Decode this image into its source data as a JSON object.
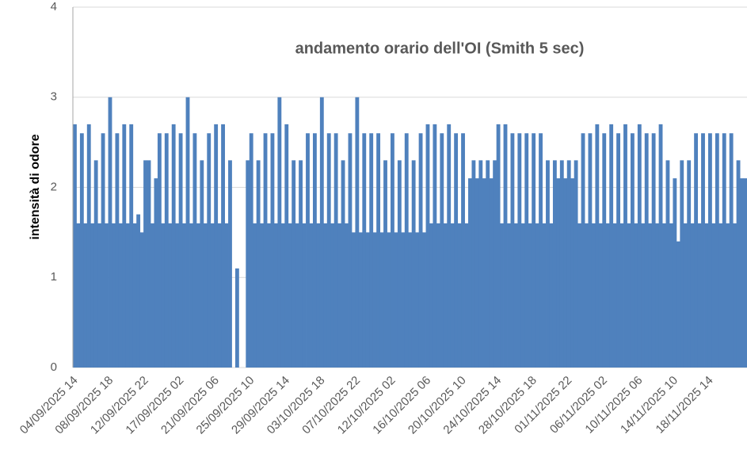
{
  "chart_data": {
    "type": "bar",
    "title": "andamento orario dell'OI (Smith 5 sec)",
    "y_label": "intensità di odore",
    "color": "#4f81bd",
    "grid": true,
    "ylim": [
      0,
      4
    ],
    "yticks": [
      0,
      1,
      2,
      3,
      4
    ],
    "categories": [
      "04/09/2025 14",
      null,
      null,
      null,
      null,
      null,
      null,
      null,
      null,
      null,
      "08/09/2025 18",
      null,
      null,
      null,
      null,
      null,
      null,
      null,
      null,
      null,
      "12/09/2025 22",
      null,
      null,
      null,
      null,
      null,
      null,
      null,
      null,
      null,
      "17/09/2025 02",
      null,
      null,
      null,
      null,
      null,
      null,
      null,
      null,
      null,
      "21/09/2025 06",
      null,
      null,
      null,
      null,
      null,
      null,
      null,
      null,
      null,
      "25/09/2025 10",
      null,
      null,
      null,
      null,
      null,
      null,
      null,
      null,
      null,
      "29/09/2025 14",
      null,
      null,
      null,
      null,
      null,
      null,
      null,
      null,
      null,
      "03/10/2025 18",
      null,
      null,
      null,
      null,
      null,
      null,
      null,
      null,
      null,
      "07/10/2025 22",
      null,
      null,
      null,
      null,
      null,
      null,
      null,
      null,
      null,
      "12/10/2025 02",
      null,
      null,
      null,
      null,
      null,
      null,
      null,
      null,
      null,
      "16/10/2025 06",
      null,
      null,
      null,
      null,
      null,
      null,
      null,
      null,
      null,
      "20/10/2025 10",
      null,
      null,
      null,
      null,
      null,
      null,
      null,
      null,
      null,
      "24/10/2025 14",
      null,
      null,
      null,
      null,
      null,
      null,
      null,
      null,
      null,
      "28/10/2025 18",
      null,
      null,
      null,
      null,
      null,
      null,
      null,
      null,
      null,
      "01/11/2025 22",
      null,
      null,
      null,
      null,
      null,
      null,
      null,
      null,
      null,
      "06/11/2025 02",
      null,
      null,
      null,
      null,
      null,
      null,
      null,
      null,
      null,
      "10/11/2025 06",
      null,
      null,
      null,
      null,
      null,
      null,
      null,
      null,
      null,
      "14/11/2025 10",
      null,
      null,
      null,
      null,
      null,
      null,
      null,
      null,
      null,
      "18/11/2025 14",
      null,
      null,
      null,
      null,
      null,
      null,
      null,
      null,
      null,
      null
    ],
    "values": [
      2.7,
      1.6,
      2.6,
      1.6,
      2.7,
      1.6,
      2.3,
      1.6,
      2.6,
      1.6,
      3.0,
      1.6,
      2.6,
      1.6,
      2.7,
      1.6,
      2.7,
      1.6,
      1.7,
      1.5,
      2.3,
      2.3,
      1.6,
      2.1,
      2.6,
      1.6,
      2.6,
      1.6,
      2.7,
      1.6,
      2.6,
      1.6,
      3.0,
      1.6,
      2.6,
      1.6,
      2.3,
      1.6,
      2.6,
      1.6,
      2.7,
      1.6,
      2.7,
      1.6,
      2.3,
      0,
      1.1,
      0,
      0,
      2.3,
      2.6,
      1.6,
      2.3,
      1.6,
      2.6,
      1.6,
      2.6,
      1.6,
      3.0,
      1.6,
      2.7,
      1.6,
      2.3,
      1.6,
      2.3,
      1.6,
      2.6,
      1.6,
      2.6,
      1.6,
      3.0,
      1.6,
      2.6,
      1.6,
      2.6,
      1.6,
      2.3,
      1.6,
      2.6,
      1.5,
      3.0,
      1.5,
      2.6,
      1.5,
      2.6,
      1.5,
      2.6,
      1.5,
      2.3,
      1.5,
      2.6,
      1.5,
      2.3,
      1.5,
      2.6,
      1.5,
      2.3,
      1.5,
      2.6,
      1.5,
      2.7,
      1.6,
      2.7,
      1.6,
      2.6,
      1.6,
      2.7,
      1.6,
      2.6,
      1.6,
      2.6,
      1.6,
      2.1,
      2.3,
      2.1,
      2.3,
      2.1,
      2.3,
      2.1,
      2.3,
      2.7,
      1.6,
      2.7,
      1.6,
      2.6,
      1.6,
      2.6,
      1.6,
      2.6,
      1.6,
      2.6,
      1.6,
      2.6,
      1.6,
      2.3,
      1.6,
      2.3,
      2.1,
      2.3,
      2.1,
      2.3,
      2.1,
      2.3,
      1.6,
      2.6,
      1.6,
      2.6,
      1.6,
      2.7,
      1.6,
      2.6,
      1.6,
      2.7,
      1.6,
      2.6,
      1.6,
      2.7,
      1.6,
      2.6,
      1.6,
      2.7,
      1.6,
      2.6,
      1.6,
      2.6,
      1.6,
      2.7,
      1.6,
      2.3,
      1.6,
      2.1,
      1.4,
      2.3,
      1.6,
      2.3,
      1.6,
      2.6,
      1.6,
      2.6,
      1.6,
      2.6,
      1.6,
      2.6,
      1.6,
      2.6,
      1.6,
      2.6,
      1.6,
      2.3,
      2.1,
      2.1
    ]
  }
}
